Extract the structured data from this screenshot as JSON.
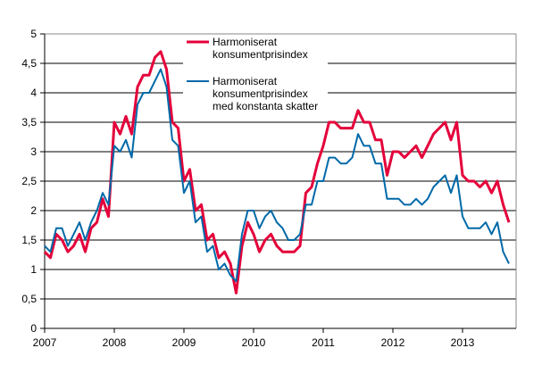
{
  "chart_data": {
    "type": "line",
    "title": "",
    "xlabel": "",
    "ylabel": "",
    "ylim": [
      0,
      5
    ],
    "yticks": [
      "0",
      "0,5",
      "1",
      "1,5",
      "2",
      "2,5",
      "3",
      "3,5",
      "4",
      "4,5",
      "5"
    ],
    "xticks": [
      "2007",
      "2008",
      "2009",
      "2010",
      "2011",
      "2012",
      "2013"
    ],
    "x_start": "2007-01",
    "frequency": "monthly",
    "grid": true,
    "legend_placement": "top-center",
    "series": [
      {
        "name_lines": [
          "Harmoniserat",
          "konsumentprisindex"
        ],
        "color": "#e4003a",
        "values": [
          1.3,
          1.2,
          1.6,
          1.5,
          1.3,
          1.4,
          1.6,
          1.3,
          1.7,
          1.8,
          2.2,
          1.9,
          3.5,
          3.3,
          3.6,
          3.3,
          4.1,
          4.3,
          4.3,
          4.6,
          4.7,
          4.4,
          3.5,
          3.4,
          2.5,
          2.7,
          2.0,
          2.1,
          1.5,
          1.6,
          1.2,
          1.3,
          1.1,
          0.6,
          1.4,
          1.8,
          1.6,
          1.3,
          1.5,
          1.6,
          1.4,
          1.3,
          1.3,
          1.3,
          1.4,
          2.3,
          2.4,
          2.8,
          3.1,
          3.5,
          3.5,
          3.4,
          3.4,
          3.4,
          3.7,
          3.5,
          3.5,
          3.2,
          3.2,
          2.6,
          3.0,
          3.0,
          2.9,
          3.0,
          3.1,
          2.9,
          3.1,
          3.3,
          3.4,
          3.5,
          3.2,
          3.5,
          2.6,
          2.5,
          2.5,
          2.4,
          2.5,
          2.3,
          2.5,
          2.1,
          1.8
        ]
      },
      {
        "name_lines": [
          "Harmoniserat",
          "konsumentprisindex",
          "med konstanta skatter"
        ],
        "color": "#0069a8",
        "values": [
          1.4,
          1.3,
          1.7,
          1.7,
          1.4,
          1.6,
          1.8,
          1.5,
          1.8,
          2.0,
          2.3,
          2.1,
          3.1,
          3.0,
          3.2,
          2.9,
          3.8,
          4.0,
          4.0,
          4.2,
          4.4,
          4.1,
          3.2,
          3.1,
          2.3,
          2.5,
          1.8,
          1.9,
          1.3,
          1.4,
          1.0,
          1.1,
          0.9,
          0.8,
          1.6,
          2.0,
          2.0,
          1.7,
          1.9,
          2.0,
          1.8,
          1.7,
          1.5,
          1.5,
          1.6,
          2.1,
          2.1,
          2.5,
          2.5,
          2.9,
          2.9,
          2.8,
          2.8,
          2.9,
          3.3,
          3.1,
          3.1,
          2.8,
          2.8,
          2.2,
          2.2,
          2.2,
          2.1,
          2.1,
          2.2,
          2.1,
          2.2,
          2.4,
          2.5,
          2.6,
          2.3,
          2.6,
          1.9,
          1.7,
          1.7,
          1.7,
          1.8,
          1.6,
          1.8,
          1.3,
          1.1
        ]
      }
    ]
  }
}
